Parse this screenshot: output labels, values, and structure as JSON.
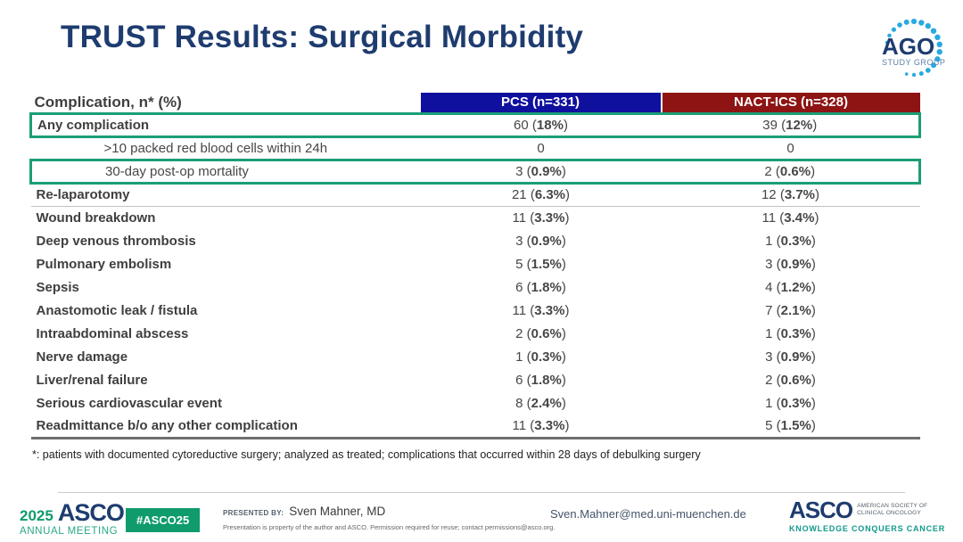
{
  "title": "TRUST Results: Surgical Morbidity",
  "ago_logo": {
    "text": "AGO",
    "subtext": "STUDY GROUP"
  },
  "table": {
    "columns": [
      "Complication, n* (%)",
      "PCS (n=331)",
      "NACT-ICS (n=328)"
    ],
    "rows": [
      {
        "label": "Any complication",
        "bold": true,
        "indent": false,
        "highlight": true,
        "pcs": {
          "pre": "60 (",
          "bold": "18%",
          "post": ")"
        },
        "nact": {
          "pre": "39 (",
          "bold": "12%",
          "post": ")"
        }
      },
      {
        "label": ">10 packed red blood cells within 24h",
        "bold": false,
        "indent": true,
        "pcs": {
          "pre": "0",
          "bold": "",
          "post": ""
        },
        "nact": {
          "pre": "0",
          "bold": "",
          "post": ""
        }
      },
      {
        "label": "30-day post-op mortality",
        "bold": false,
        "indent": true,
        "highlight": true,
        "pcs": {
          "pre": "3 (",
          "bold": "0.9%",
          "post": ")"
        },
        "nact": {
          "pre": "2 (",
          "bold": "0.6%",
          "post": ")"
        }
      },
      {
        "label": "Re-laparotomy",
        "bold": true,
        "sep": true,
        "pcs": {
          "pre": "21 (",
          "bold": "6.3%",
          "post": ")"
        },
        "nact": {
          "pre": "12 (",
          "bold": "3.7%",
          "post": ")"
        }
      },
      {
        "label": "Wound breakdown",
        "bold": true,
        "pcs": {
          "pre": "11 (",
          "bold": "3.3%",
          "post": ")"
        },
        "nact": {
          "pre": "11 (",
          "bold": "3.4%",
          "post": ")"
        }
      },
      {
        "label": "Deep venous thrombosis",
        "bold": true,
        "pcs": {
          "pre": "3 (",
          "bold": "0.9%",
          "post": ")"
        },
        "nact": {
          "pre": "1 (",
          "bold": "0.3%",
          "post": ")"
        }
      },
      {
        "label": "Pulmonary embolism",
        "bold": true,
        "pcs": {
          "pre": "5 (",
          "bold": "1.5%",
          "post": ")"
        },
        "nact": {
          "pre": "3 (",
          "bold": "0.9%",
          "post": ")"
        }
      },
      {
        "label": "Sepsis",
        "bold": true,
        "pcs": {
          "pre": "6 (",
          "bold": "1.8%",
          "post": ")"
        },
        "nact": {
          "pre": "4 (",
          "bold": "1.2%",
          "post": ")"
        }
      },
      {
        "label": "Anastomotic leak / fistula",
        "bold": true,
        "pcs": {
          "pre": "11 (",
          "bold": "3.3%",
          "post": ")"
        },
        "nact": {
          "pre": "7 (",
          "bold": "2.1%",
          "post": ")"
        }
      },
      {
        "label": "Intraabdominal abscess",
        "bold": true,
        "pcs": {
          "pre": "2 (",
          "bold": "0.6%",
          "post": ")"
        },
        "nact": {
          "pre": "1 (",
          "bold": "0.3%",
          "post": ")"
        }
      },
      {
        "label": "Nerve damage",
        "bold": true,
        "pcs": {
          "pre": "1 (",
          "bold": "0.3%",
          "post": ")"
        },
        "nact": {
          "pre": "3 (",
          "bold": "0.9%",
          "post": ")"
        }
      },
      {
        "label": "Liver/renal failure",
        "bold": true,
        "pcs": {
          "pre": "6 (",
          "bold": "1.8%",
          "post": ")"
        },
        "nact": {
          "pre": "2 (",
          "bold": "0.6%",
          "post": ")"
        }
      },
      {
        "label": "Serious cardiovascular event",
        "bold": true,
        "pcs": {
          "pre": "8 (",
          "bold": "2.4%",
          "post": ")"
        },
        "nact": {
          "pre": "1 (",
          "bold": "0.3%",
          "post": ")"
        }
      },
      {
        "label": "Readmittance b/o any other complication",
        "bold": true,
        "last": true,
        "pcs": {
          "pre": "11 (",
          "bold": "3.3%",
          "post": ")"
        },
        "nact": {
          "pre": "5 (",
          "bold": "1.5%",
          "post": ")"
        }
      }
    ]
  },
  "footnote": "*: patients with documented cytoreductive surgery; analyzed as treated; complications that occurred within 28 days of debulking surgery",
  "footer": {
    "meeting_year": "2025",
    "meeting_org": "ASCO",
    "meeting_name": "ANNUAL MEETING",
    "hashtag": "#ASCO25",
    "presented_by_label": "PRESENTED BY:",
    "presenter": "Sven Mahner, MD",
    "disclaimer": "Presentation is property of the author and ASCO. Permission required for reuse; contact permissions@asco.org.",
    "email": "Sven.Mahner@med.uni-muenchen.de",
    "asco_logo": {
      "name": "ASCO",
      "org_line1": "AMERICAN SOCIETY OF",
      "org_line2": "CLINICAL ONCOLOGY",
      "tagline": "KNOWLEDGE CONQUERS CANCER"
    }
  },
  "colors": {
    "title_navy": "#1e3c6f",
    "pcs_header_bg": "#10109e",
    "nact_header_bg": "#8e1414",
    "highlight_green": "#1b9e77",
    "asco_green": "#0f9b6c",
    "tagline_teal": "#12998a"
  }
}
